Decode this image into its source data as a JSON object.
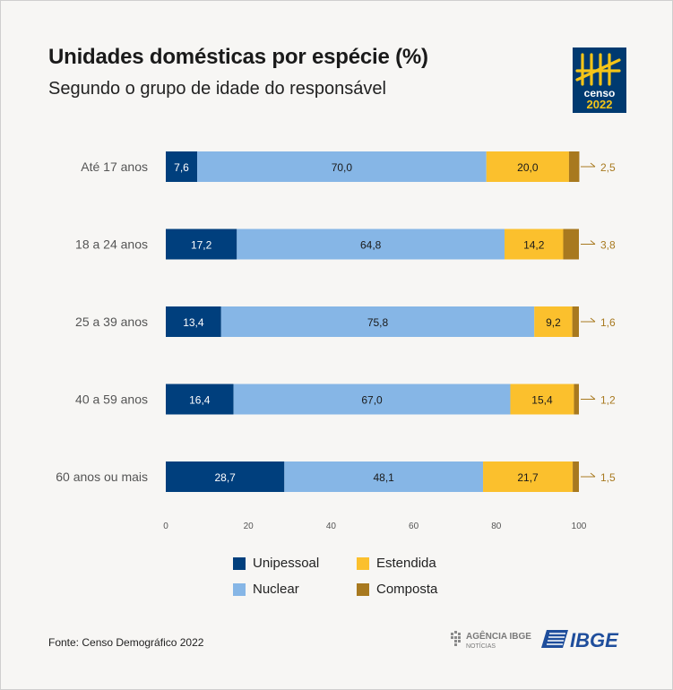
{
  "title": "Unidades domésticas por espécie (%)",
  "subtitle": "Segundo o grupo de idade do responsável",
  "logo": {
    "icon": "censo-2022-logo",
    "line1": "censo",
    "line2": "2022"
  },
  "source": "Fonte: Censo Demográfico 2022",
  "footer_logos": {
    "agencia_line1": "AGÊNCIA IBGE",
    "agencia_line2": "NOTÍCIAS",
    "ibge": "IBGE"
  },
  "chart_data": {
    "type": "bar",
    "orientation": "horizontal",
    "stacked": true,
    "title": "Unidades domésticas por espécie (%)",
    "subtitle": "Segundo o grupo de idade do responsável",
    "categories": [
      "Até 17 anos",
      "18 a 24 anos",
      "25 a 39 anos",
      "40 a 59 anos",
      "60 anos ou mais"
    ],
    "series": [
      {
        "name": "Unipessoal",
        "color": "#003f7d",
        "values": [
          7.6,
          17.2,
          13.4,
          16.4,
          28.7
        ],
        "labels": [
          "7,6",
          "17,2",
          "13,4",
          "16,4",
          "28,7"
        ]
      },
      {
        "name": "Nuclear",
        "color": "#86b6e6",
        "values": [
          70.0,
          64.8,
          75.8,
          67.0,
          48.1
        ],
        "labels": [
          "70,0",
          "64,8",
          "75,8",
          "67,0",
          "48,1"
        ]
      },
      {
        "name": "Estendida",
        "color": "#fbc02d",
        "values": [
          20.0,
          14.2,
          9.2,
          15.4,
          21.7
        ],
        "labels": [
          "20,0",
          "14,2",
          "9,2",
          "15,4",
          "21,7"
        ]
      },
      {
        "name": "Composta",
        "color": "#a8791f",
        "values": [
          2.5,
          3.8,
          1.6,
          1.2,
          1.5
        ],
        "labels": [
          "2,5",
          "3,8",
          "1,6",
          "1,2",
          "1,5"
        ]
      }
    ],
    "xlim": [
      0,
      100
    ],
    "xticks": [
      0,
      20,
      40,
      60,
      80,
      100
    ],
    "xtick_labels": [
      "0",
      "20",
      "40",
      "60",
      "80",
      "100"
    ],
    "grid": false,
    "legend_position": "bottom",
    "legend_order": [
      "Unipessoal",
      "Estendida",
      "Nuclear",
      "Composta"
    ],
    "outside_label_color": "#a8791f"
  }
}
